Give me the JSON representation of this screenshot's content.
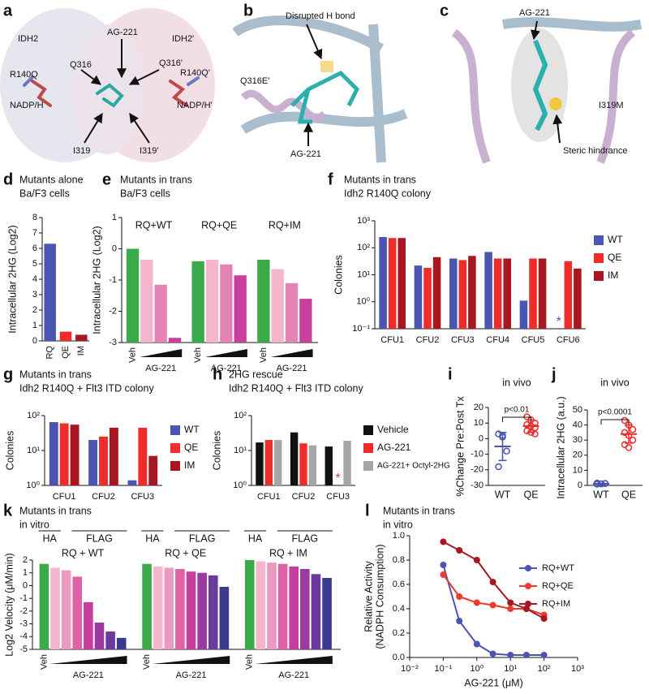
{
  "structures": [
    {
      "panel": "a",
      "labels": [
        "IDH2",
        "IDH2'",
        "AG-221",
        "Q316",
        "Q316'",
        "R140Q",
        "R140Q'",
        "NADP/H",
        "NADP/H'",
        "I319",
        "I319'"
      ]
    },
    {
      "panel": "b",
      "labels": [
        "Disrupted H bond",
        "Q316E'",
        "AG-221"
      ]
    },
    {
      "panel": "c",
      "labels": [
        "AG-221",
        "I319M",
        "Steric hindrance"
      ]
    }
  ],
  "chart_data": [
    {
      "type": "bar",
      "panel": "d",
      "title": "Mutants alone",
      "subtitle": "Ba/F3 cells",
      "y_label": "Intracellular 2HG (Log2)",
      "categories": [
        "RQ",
        "QE",
        "IM"
      ],
      "values": [
        6.3,
        0.6,
        0.4
      ],
      "colors": [
        "#4b55b0",
        "#ee2d2a",
        "#a8171f"
      ],
      "ylim": [
        0,
        8
      ],
      "yticks": [
        0,
        1,
        2,
        3,
        4,
        5,
        6,
        7,
        8
      ]
    },
    {
      "type": "dose",
      "panel": "e",
      "title": "Mutants in trans",
      "subtitle": "Ba/F3 cells",
      "y_label": "Intracellular 2HG (Log2)",
      "groups": [
        "RQ+WT",
        "RQ+QE",
        "RQ+IM"
      ],
      "x_labels": [
        "Veh",
        "AG-221"
      ],
      "colors": [
        "#3aaa4a",
        "#f4b6cc",
        "#e384b4",
        "#c9409c"
      ],
      "values": [
        [
          0,
          -0.35,
          -1.15,
          -2.85
        ],
        [
          -0.4,
          -0.35,
          -0.5,
          -0.85
        ],
        [
          -0.35,
          -0.65,
          -1.1,
          -1.6
        ]
      ],
      "ylim": [
        -3,
        1
      ],
      "yticks": [
        -3,
        -2,
        -1,
        0,
        1
      ]
    },
    {
      "type": "bar",
      "panel": "f",
      "title": "Mutants in trans",
      "subtitle": "Idh2 R140Q colony",
      "y_label": "Colonies",
      "log_y": true,
      "categories": [
        "CFU1",
        "CFU2",
        "CFU3",
        "CFU4",
        "CFU5",
        "CFU6"
      ],
      "null_marker": "*",
      "series": [
        {
          "name": "WT",
          "color": "#4b55b0",
          "values": [
            250,
            22,
            40,
            70,
            1.1,
            null
          ]
        },
        {
          "name": "QE",
          "color": "#ee2d2a",
          "values": [
            230,
            18,
            35,
            40,
            40,
            32
          ]
        },
        {
          "name": "IM",
          "color": "#a8171f",
          "values": [
            230,
            45,
            50,
            40,
            40,
            17
          ]
        }
      ],
      "ylim": [
        0.1,
        1000
      ],
      "yticks": [
        {
          "value": 0.1,
          "label": "10⁻¹"
        },
        {
          "value": 1,
          "label": "10⁰"
        },
        {
          "value": 10,
          "label": "10¹"
        },
        {
          "value": 100,
          "label": "10²"
        },
        {
          "value": 1000,
          "label": "10³"
        }
      ]
    },
    {
      "type": "bar",
      "panel": "g",
      "title": "Mutants in trans",
      "subtitle": "Idh2 R140Q + Flt3 ITD colony",
      "y_label": "Colonies",
      "log_y": true,
      "categories": [
        "CFU1",
        "CFU2",
        "CFU3"
      ],
      "series": [
        {
          "name": "WT",
          "color": "#4b55b0",
          "values": [
            65,
            20,
            1.4
          ]
        },
        {
          "name": "QE",
          "color": "#ee2d2a",
          "values": [
            60,
            25,
            45
          ]
        },
        {
          "name": "IM",
          "color": "#a8171f",
          "values": [
            55,
            45,
            7
          ]
        }
      ],
      "ylim": [
        1,
        100
      ],
      "yticks": [
        {
          "value": 1,
          "label": "10⁰"
        },
        {
          "value": 10,
          "label": "10¹"
        },
        {
          "value": 100,
          "label": "10²"
        }
      ]
    },
    {
      "type": "bar",
      "panel": "h",
      "title": "2HG rescue",
      "subtitle": "Idh2 R140Q + Flt3 ITD colony",
      "y_label": "Colonies",
      "log_y": true,
      "categories": [
        "CFU1",
        "CFU2",
        "CFU3"
      ],
      "null_marker": "*",
      "series": [
        {
          "name": "Vehicle",
          "color": "#111111",
          "values": [
            17,
            33,
            13
          ]
        },
        {
          "name": "AG-221",
          "color": "#ee2d2a",
          "values": [
            20,
            16,
            null
          ]
        },
        {
          "name": "AG-221+ Octyl-2HG",
          "color": "#a6a6a6",
          "values": [
            20,
            14,
            19
          ]
        }
      ],
      "ylim": [
        1,
        100
      ],
      "yticks": [
        {
          "value": 1,
          "label": "10⁰"
        },
        {
          "value": 10,
          "label": "10¹"
        },
        {
          "value": 100,
          "label": "10²"
        }
      ]
    },
    {
      "type": "dot",
      "panel": "i",
      "title": "in vivo",
      "y_label": "%Change Pre:Post Tx",
      "annotation": "p<0.01",
      "categories": [
        "WT",
        "QE"
      ],
      "colors": [
        "#4b55b0",
        "#ee2d2a"
      ],
      "points": [
        [
          3,
          1,
          -8,
          -18,
          2
        ],
        [
          14,
          12,
          10,
          9,
          8,
          7,
          5,
          4,
          3
        ]
      ],
      "mean": [
        -5,
        8
      ],
      "sd": [
        9,
        4
      ],
      "ylim": [
        -30,
        20
      ],
      "yticks": [
        -30,
        -20,
        -10,
        0,
        10,
        20
      ]
    },
    {
      "type": "dot",
      "panel": "j",
      "title": "in vivo",
      "y_label": "Intracellular 2HG (a.u.)",
      "annotation": "p<0.0001",
      "categories": [
        "WT",
        "QE"
      ],
      "colors": [
        "#4b55b0",
        "#ee2d2a"
      ],
      "points": [
        [
          1.5,
          1,
          1.2,
          0.8,
          1,
          1.3
        ],
        [
          43,
          40,
          37,
          35,
          33,
          30,
          27,
          25
        ]
      ],
      "mean": [
        1.1,
        34
      ],
      "sd": [
        0.3,
        6
      ],
      "ylim": [
        0,
        50
      ],
      "yticks": [
        0,
        10,
        20,
        30,
        40,
        50
      ]
    },
    {
      "type": "dose",
      "panel": "k",
      "title": "Mutants in trans",
      "subtitle": "in vitro",
      "y_label": "Log2 Velocity (μM/min)",
      "groups": [
        "RQ + WT",
        "RQ + QE",
        "RQ + IM"
      ],
      "group_tags": [
        "HA",
        "FLAG"
      ],
      "x_labels": [
        "Veh",
        "AG-221"
      ],
      "colors": [
        "#3aaa4a",
        "#f4b6cc",
        "#e89ac0",
        "#df62a8",
        "#c63f9f",
        "#9b3aa0",
        "#6a3a9c",
        "#3a3a8e"
      ],
      "values": [
        [
          1.7,
          1.4,
          1.2,
          0.7,
          -1.3,
          -2.9,
          -3.6,
          -4.1
        ],
        [
          1.7,
          1.5,
          1.4,
          1.3,
          1.1,
          1.0,
          0.8,
          -0.1
        ],
        [
          2.0,
          1.9,
          1.8,
          1.7,
          1.5,
          1.3,
          0.9,
          0.6
        ]
      ],
      "ylim": [
        -5,
        2
      ],
      "yticks": [
        -5,
        -4,
        -3,
        -2,
        -1,
        0,
        1,
        2
      ]
    },
    {
      "type": "line",
      "panel": "l",
      "title": "Mutants in trans",
      "subtitle": "in vitro",
      "y_label": [
        "Relative Activity",
        "(NADPH Consumption)"
      ],
      "x_label": "AG-221 (μM)",
      "log_x": true,
      "x": [
        0.1,
        0.3,
        1,
        3,
        10,
        30,
        100
      ],
      "series": [
        {
          "name": "RQ+WT",
          "color": "#4b55b0",
          "values": [
            0.76,
            0.3,
            0.11,
            0.03,
            0.02,
            0.02,
            0.02
          ]
        },
        {
          "name": "RQ+QE",
          "color": "#ee3b2e",
          "values": [
            0.68,
            0.5,
            0.45,
            0.43,
            0.4,
            0.4,
            0.35
          ]
        },
        {
          "name": "RQ+IM",
          "color": "#a8171f",
          "values": [
            0.95,
            0.88,
            0.8,
            0.62,
            0.45,
            0.4,
            0.32
          ]
        }
      ],
      "xlim": [
        0.01,
        1000
      ],
      "xticks": [
        {
          "value": 0.01,
          "label": "10⁻²"
        },
        {
          "value": 0.1,
          "label": "10⁻¹"
        },
        {
          "value": 1,
          "label": "10⁰"
        },
        {
          "value": 10,
          "label": "10¹"
        },
        {
          "value": 100,
          "label": "10²"
        },
        {
          "value": 1000,
          "label": "10³"
        }
      ],
      "ylim": [
        0,
        1
      ],
      "yticks": [
        {
          "value": 0,
          "label": "0.0"
        },
        0.2,
        0.4,
        0.6,
        0.8,
        {
          "value": 1,
          "label": "1.0"
        }
      ]
    }
  ]
}
